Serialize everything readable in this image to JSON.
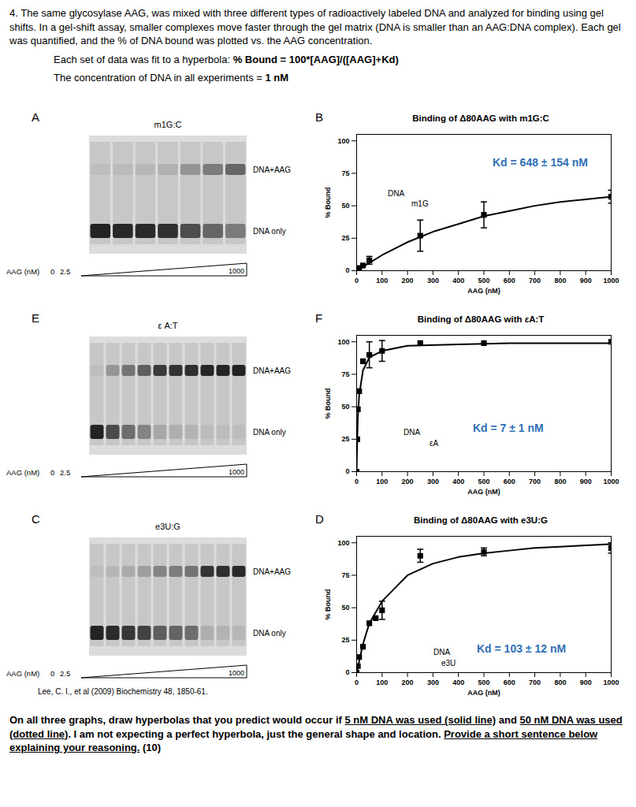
{
  "header": {
    "paragraphs": [
      [
        {
          "text": "4. The same glycosylase AAG, was mixed with three different types of radioactively labeled DNA and analyzed for binding using gel shifts. In a gel-shift assay, smaller complexes move faster through the gel matrix (DNA is smaller than an AAG:DNA complex). Each gel was quantified, and the % of DNA bound was plotted vs. the AAG concentration.",
          "style": "plain"
        }
      ],
      [
        {
          "text": "Each set of data was fit to a hyperbola:  ",
          "style": "plain"
        },
        {
          "text": "% Bound = 100*[AAG]/([AAG]+Kd)",
          "style": "bold"
        }
      ],
      [
        {
          "text": "The concentration of DNA in all experiments = ",
          "style": "plain"
        },
        {
          "text": "1 nM",
          "style": "bold"
        }
      ]
    ]
  },
  "gels": [
    {
      "panel": "A",
      "label": "m1G:C",
      "upper_band": "DNA+AAG",
      "lower_band": "DNA only",
      "conc_label": "AAG (nM)",
      "conc_start": [
        0,
        2.5
      ],
      "conc_end": 1000
    },
    {
      "panel": "E",
      "label": "ε A:T",
      "upper_band": "DNA+AAG",
      "lower_band": "DNA only",
      "conc_label": "AAG (nM)",
      "conc_start": [
        0,
        2.5
      ],
      "conc_end": 1000
    },
    {
      "panel": "C",
      "label": "e3U:G",
      "upper_band": "DNA+AAG",
      "lower_band": "DNA only",
      "conc_label": "AAG (nM)",
      "conc_start": [
        0,
        2.5
      ],
      "conc_end": 1000
    }
  ],
  "chart_data": [
    {
      "type": "scatter",
      "panel": "B",
      "title": "Binding of Δ80AAG with m1G:C",
      "x_label": "AAG (nM)",
      "y_label": "% Bound",
      "x": [
        0,
        10,
        25,
        50,
        250,
        500,
        1000
      ],
      "values": [
        0,
        2,
        4,
        8,
        27,
        43,
        57
      ],
      "errors": [
        null,
        null,
        null,
        3,
        12,
        10,
        5
      ],
      "fit": {
        "x": [
          0,
          50,
          100,
          200,
          300,
          400,
          500,
          600,
          700,
          800,
          900,
          1000
        ],
        "values": [
          0,
          6,
          12,
          22,
          30,
          36,
          42,
          46,
          50,
          53,
          55,
          57
        ]
      },
      "color": "#000000",
      "marker": "square",
      "line_style": "solid",
      "xlim": [
        0,
        1000
      ],
      "xticks": [
        0,
        100,
        200,
        300,
        400,
        500,
        600,
        700,
        800,
        900,
        1000
      ],
      "ylim": [
        0,
        105
      ],
      "yticks": [
        0,
        25,
        50,
        75,
        100
      ],
      "grid": false,
      "annotations": {
        "kd": "Kd = 648 ± 154 nM",
        "molecule": "m1G",
        "attachment": "DNA"
      }
    },
    {
      "type": "scatter",
      "panel": "F",
      "title": "Binding of Δ80AAG with εA:T",
      "x_label": "AAG (nM)",
      "y_label": "% Bound",
      "x": [
        0,
        2.5,
        5,
        10,
        25,
        50,
        100,
        250,
        500,
        1000
      ],
      "values": [
        0,
        25,
        48,
        62,
        85,
        90,
        93,
        99,
        99,
        100
      ],
      "errors": [
        null,
        null,
        null,
        null,
        null,
        10,
        8,
        null,
        null,
        null
      ],
      "fit": {
        "x": [
          0,
          2.5,
          5,
          10,
          25,
          50,
          100,
          200,
          400,
          600,
          800,
          1000
        ],
        "values": [
          0,
          26,
          42,
          59,
          78,
          88,
          93,
          97,
          98,
          99,
          99,
          99
        ]
      },
      "color": "#000000",
      "marker": "square",
      "line_style": "solid",
      "xlim": [
        0,
        1000
      ],
      "xticks": [
        0,
        100,
        200,
        300,
        400,
        500,
        600,
        700,
        800,
        900,
        1000
      ],
      "ylim": [
        0,
        105
      ],
      "yticks": [
        0,
        25,
        50,
        75,
        100
      ],
      "grid": false,
      "annotations": {
        "kd": "Kd = 7 ± 1 nM",
        "molecule": "εA",
        "attachment": "DNA"
      }
    },
    {
      "type": "scatter",
      "panel": "D",
      "title": "Binding of Δ80AAG with e3U:G",
      "x_label": "AAG (nM)",
      "y_label": "% Bound",
      "x": [
        0,
        5,
        10,
        25,
        50,
        75,
        100,
        250,
        500,
        1000
      ],
      "values": [
        0,
        5,
        12,
        20,
        38,
        42,
        48,
        90,
        93,
        96
      ],
      "errors": [
        null,
        null,
        null,
        null,
        null,
        null,
        7,
        5,
        3,
        4
      ],
      "fit": {
        "x": [
          0,
          25,
          50,
          100,
          200,
          300,
          400,
          500,
          600,
          700,
          800,
          900,
          1000
        ],
        "values": [
          0,
          22,
          38,
          55,
          75,
          84,
          89,
          92,
          94,
          96,
          97,
          98,
          99
        ]
      },
      "color": "#000000",
      "marker": "square",
      "line_style": "solid",
      "xlim": [
        0,
        1000
      ],
      "xticks": [
        0,
        100,
        200,
        300,
        400,
        500,
        600,
        700,
        800,
        900,
        1000
      ],
      "ylim": [
        0,
        105
      ],
      "yticks": [
        0,
        25,
        50,
        75,
        100
      ],
      "grid": false,
      "annotations": {
        "kd": "Kd = 103 ± 12 nM",
        "molecule": "e3U",
        "attachment": "DNA"
      }
    }
  ],
  "citation": "Lee, C. I., et al (2009) Biochemistry 48, 1850-61.",
  "footer": {
    "paragraphs": [
      [
        {
          "text": "On all three graphs, draw hyperbolas that you predict would occur if ",
          "style": "bold"
        },
        {
          "text": "5 nM DNA was used (solid line)",
          "style": "underline"
        },
        {
          "text": " and ",
          "style": "bold"
        },
        {
          "text": "50 nM DNA was used (dotted line)",
          "style": "underline"
        },
        {
          "text": ". I am not expecting a perfect hyperbola, just the general shape and location. ",
          "style": "bold"
        },
        {
          "text": "Provide a short sentence below explaining your reasoning.",
          "style": "underline"
        },
        {
          "text": " (10)",
          "style": "bold"
        }
      ]
    ]
  }
}
